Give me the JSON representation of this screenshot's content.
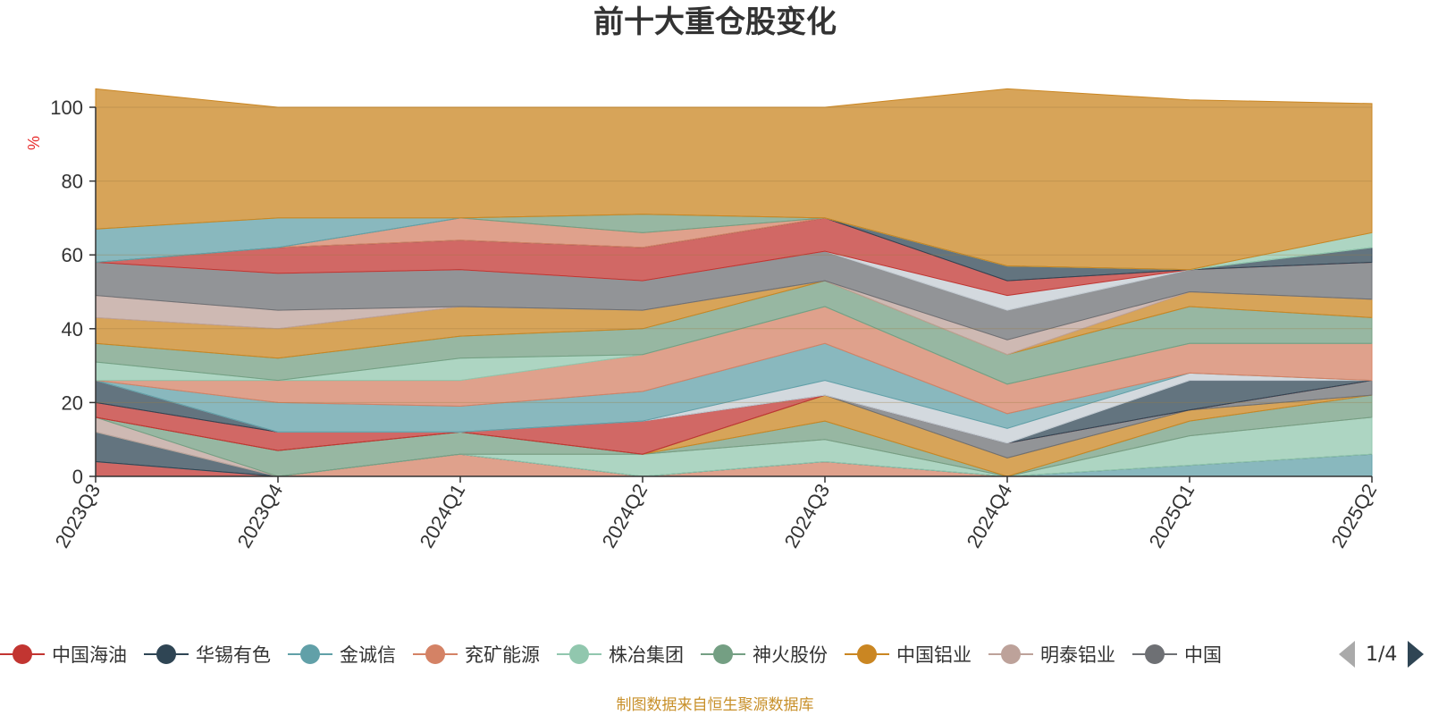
{
  "page": {
    "title": "前十大重仓股变化",
    "footer": "制图数据来自恒生聚源数据库",
    "legend_page": "1/4"
  },
  "chart_data": {
    "type": "area",
    "stacked": true,
    "title": "前十大重仓股变化",
    "ylabel": "%",
    "ylim": [
      0,
      100
    ],
    "yticks": [
      0,
      20,
      40,
      60,
      80,
      100
    ],
    "grid": true,
    "legend_position": "bottom",
    "categories": [
      "2023Q3",
      "2023Q4",
      "2024Q1",
      "2024Q2",
      "2024Q3",
      "2024Q4",
      "2025Q1",
      "2025Q2"
    ],
    "legend_items": [
      {
        "name": "中国海油",
        "color": "#c23531"
      },
      {
        "name": "华锡有色",
        "color": "#2f4554"
      },
      {
        "name": "金诚信",
        "color": "#61a0a8"
      },
      {
        "name": "兖矿能源",
        "color": "#d48265"
      },
      {
        "name": "株冶集团",
        "color": "#91c7ae"
      },
      {
        "name": "神火股份",
        "color": "#749f83"
      },
      {
        "name": "中国铝业",
        "color": "#ca8622"
      },
      {
        "name": "明泰铝业",
        "color": "#bda29a"
      },
      {
        "name": "中国",
        "color": "#6e7074"
      }
    ],
    "layers": [
      {
        "color": "#c23531",
        "values": [
          4,
          0,
          0,
          0,
          0,
          0,
          0,
          0
        ]
      },
      {
        "color": "#d48265",
        "values": [
          0,
          0,
          6,
          0,
          4,
          0,
          0,
          0
        ]
      },
      {
        "color": "#61a0a8",
        "values": [
          0,
          0,
          0,
          0,
          0,
          0,
          3,
          6
        ]
      },
      {
        "color": "#2f4554",
        "values": [
          8,
          0,
          0,
          0,
          0,
          0,
          0,
          0
        ]
      },
      {
        "color": "#91c7ae",
        "values": [
          0,
          0,
          0,
          6,
          6,
          0,
          8,
          10
        ]
      },
      {
        "color": "#bda29a",
        "values": [
          4,
          0,
          0,
          0,
          0,
          0,
          0,
          0
        ]
      },
      {
        "color": "#749f83",
        "values": [
          0,
          7,
          6,
          0,
          5,
          0,
          4,
          6
        ]
      },
      {
        "color": "#ca8622",
        "values": [
          0,
          0,
          0,
          0,
          7,
          5,
          3,
          0
        ]
      },
      {
        "color": "#6e7074",
        "values": [
          0,
          0,
          0,
          0,
          0,
          4,
          0,
          4
        ]
      },
      {
        "color": "#c23531",
        "values": [
          4,
          5,
          0,
          9,
          0,
          0,
          0,
          0
        ]
      },
      {
        "color": "#2f4554",
        "values": [
          6,
          0,
          0,
          0,
          0,
          0,
          8,
          0
        ]
      },
      {
        "color": "#c4ccd3",
        "values": [
          0,
          0,
          0,
          0,
          4,
          4,
          2,
          0
        ]
      },
      {
        "color": "#61a0a8",
        "values": [
          0,
          8,
          7,
          8,
          10,
          4,
          0,
          0
        ]
      },
      {
        "color": "#d48265",
        "values": [
          0,
          6,
          7,
          10,
          10,
          8,
          8,
          10
        ]
      },
      {
        "color": "#91c7ae",
        "values": [
          5,
          0,
          6,
          0,
          0,
          0,
          0,
          0
        ]
      },
      {
        "color": "#749f83",
        "values": [
          5,
          6,
          6,
          7,
          7,
          8,
          10,
          7
        ]
      },
      {
        "color": "#ca8622",
        "values": [
          7,
          8,
          8,
          5,
          0,
          0,
          4,
          5
        ]
      },
      {
        "color": "#bda29a",
        "values": [
          6,
          5,
          0,
          0,
          0,
          4,
          0,
          0
        ]
      },
      {
        "color": "#6e7074",
        "values": [
          9,
          10,
          10,
          8,
          8,
          8,
          6,
          10
        ]
      },
      {
        "color": "#c4ccd3",
        "values": [
          0,
          0,
          0,
          0,
          0,
          4,
          0,
          0
        ]
      },
      {
        "color": "#c23531",
        "values": [
          0,
          7,
          8,
          9,
          9,
          4,
          0,
          0
        ]
      },
      {
        "color": "#2f4554",
        "values": [
          0,
          0,
          0,
          0,
          0,
          4,
          0,
          4
        ]
      },
      {
        "color": "#d48265",
        "values": [
          0,
          0,
          6,
          4,
          0,
          0,
          0,
          0
        ]
      },
      {
        "color": "#749f83",
        "values": [
          0,
          0,
          0,
          5,
          0,
          0,
          0,
          0
        ]
      },
      {
        "color": "#61a0a8",
        "values": [
          9,
          8,
          0,
          0,
          0,
          0,
          0,
          0
        ]
      },
      {
        "color": "#91c7ae",
        "values": [
          0,
          0,
          0,
          0,
          0,
          0,
          0,
          4
        ]
      },
      {
        "color": "#ca8622",
        "values": [
          38,
          30,
          30,
          29,
          30,
          48,
          46,
          35
        ]
      }
    ]
  }
}
